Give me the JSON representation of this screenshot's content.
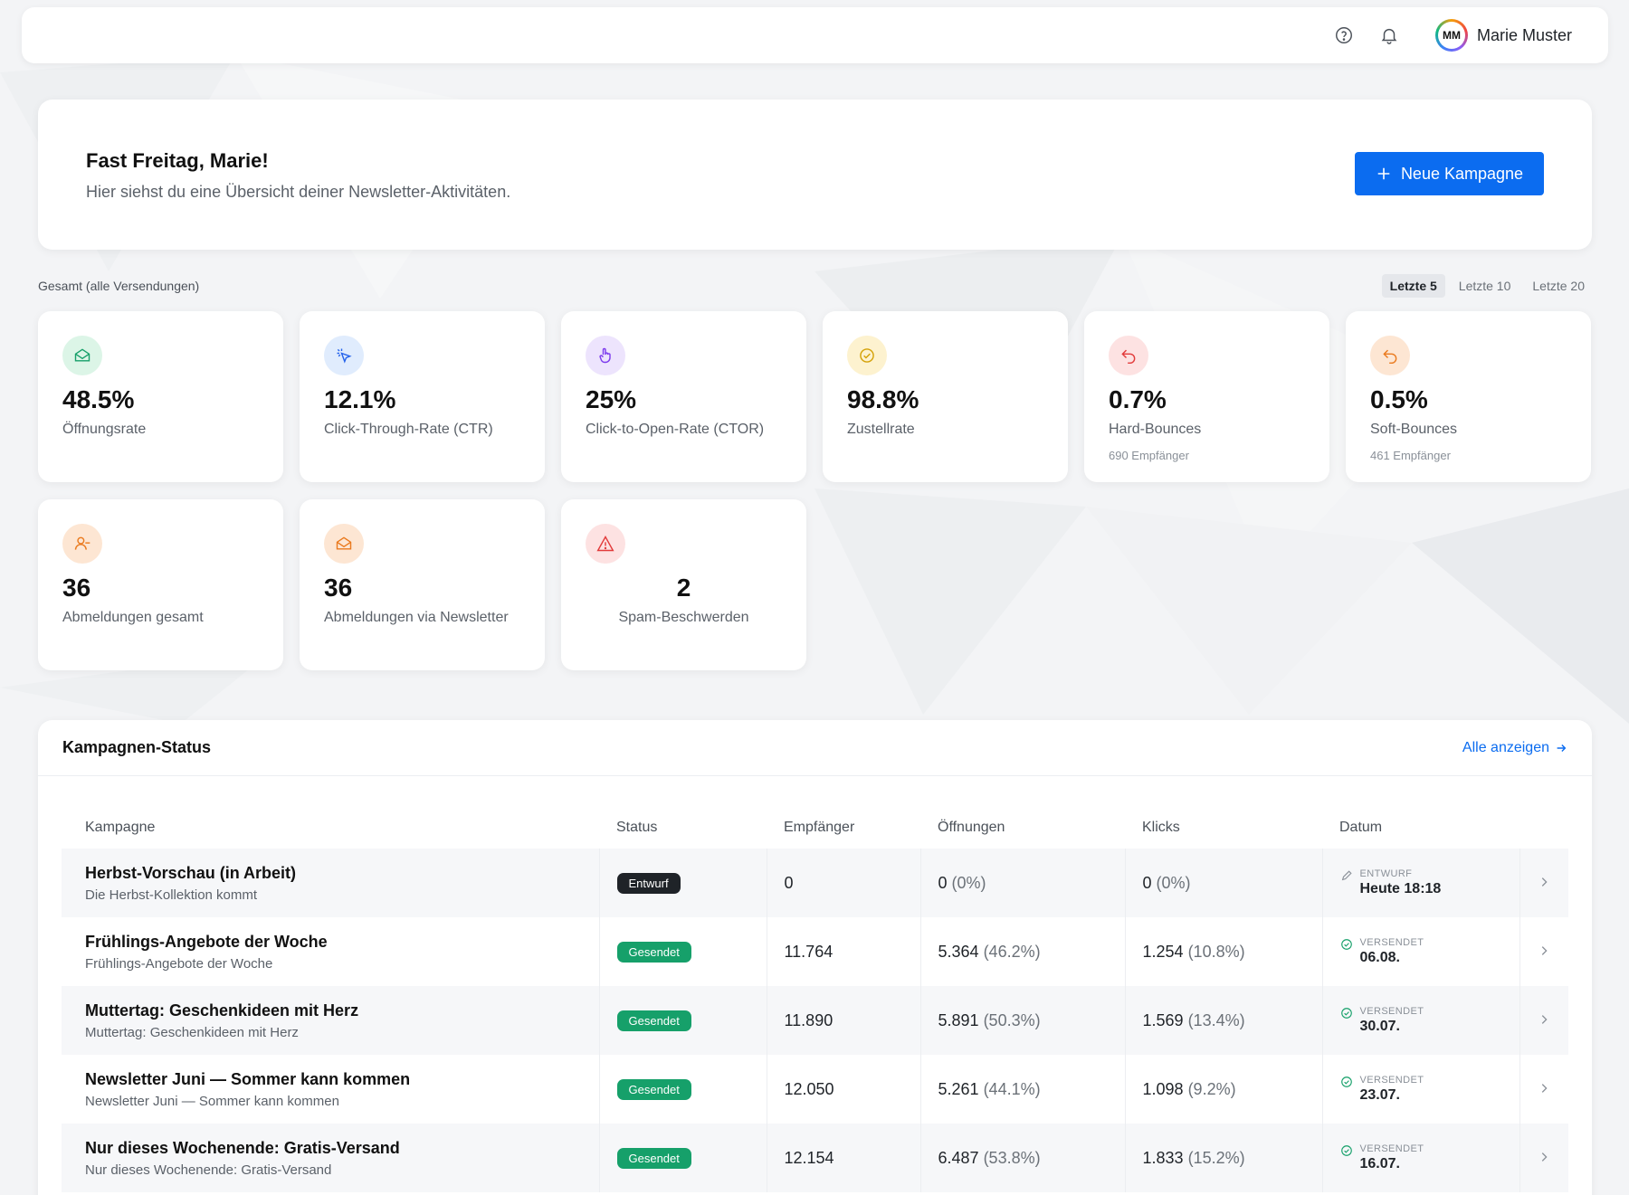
{
  "topbar": {
    "icons": [
      "help-circle-icon",
      "bell-icon"
    ],
    "user": {
      "initials": "MM",
      "name": "Marie Muster"
    }
  },
  "greeting": {
    "title": "Fast Freitag, Marie!",
    "subtitle": "Hier siehst du eine Übersicht deiner Newsletter-Aktivitäten.",
    "button_label": "Neue Kampagne"
  },
  "stats_section": {
    "label": "Gesamt (alle Versendungen)",
    "filters": [
      {
        "label": "Letzte 5",
        "active": true
      },
      {
        "label": "Letzte 10",
        "active": false
      },
      {
        "label": "Letzte 20",
        "active": false
      }
    ]
  },
  "stats": [
    {
      "value": "48.5%",
      "label": "Öffnungsrate",
      "sub": "",
      "icon": "envelope-open-icon",
      "color": "#16a06a",
      "bg": "#dcf5e7"
    },
    {
      "value": "12.1%",
      "label": "Click-Through-Rate (CTR)",
      "sub": "",
      "icon": "cursor-click-icon",
      "color": "#2563eb",
      "bg": "#e0ecfd"
    },
    {
      "value": "25%",
      "label": "Click-to-Open-Rate (CTOR)",
      "sub": "",
      "icon": "hand-pointer-icon",
      "color": "#7c3aed",
      "bg": "#ede4fd"
    },
    {
      "value": "98.8%",
      "label": "Zustellrate",
      "sub": "",
      "icon": "check-circle-icon",
      "color": "#d4a106",
      "bg": "#fdf2cf"
    },
    {
      "value": "0.7%",
      "label": "Hard-Bounces",
      "sub": "690 Empfänger",
      "icon": "return-arrow-icon",
      "color": "#e23b3b",
      "bg": "#fde2e2"
    },
    {
      "value": "0.5%",
      "label": "Soft-Bounces",
      "sub": "461 Empfänger",
      "icon": "return-arrow-icon",
      "color": "#ea7a1e",
      "bg": "#fde6d3"
    },
    {
      "value": "36",
      "label": "Abmeldungen gesamt",
      "sub": "",
      "icon": "user-minus-icon",
      "color": "#ea7a1e",
      "bg": "#fde6d3"
    },
    {
      "value": "36",
      "label": "Abmeldungen via Newsletter",
      "sub": "",
      "icon": "envelope-open-icon",
      "color": "#ea7a1e",
      "bg": "#fde6d3"
    },
    {
      "value": "2",
      "label": "Spam-Beschwerden",
      "sub": "",
      "icon": "warning-triangle-icon",
      "color": "#e23b3b",
      "bg": "#fde2e2"
    }
  ],
  "campaigns": {
    "title": "Kampagnen-Status",
    "all_link": "Alle anzeigen",
    "columns": [
      "Kampagne",
      "Status",
      "Empfänger",
      "Öffnungen",
      "Klicks",
      "Datum"
    ],
    "rows": [
      {
        "name": "Herbst-Vorschau (in Arbeit)",
        "sub": "Die Herbst-Kollektion kommt",
        "status": "Entwurf",
        "status_type": "draft",
        "recipients": "0",
        "opens": "0",
        "opens_pct": "(0%)",
        "clicks": "0",
        "clicks_pct": "(0%)",
        "date_state": "ENTWURF",
        "date": "Heute 18:18",
        "date_icon": "pencil-icon"
      },
      {
        "name": "Frühlings-Angebote der Woche",
        "sub": "Frühlings-Angebote der Woche",
        "status": "Gesendet",
        "status_type": "sent",
        "recipients": "11.764",
        "opens": "5.364",
        "opens_pct": "(46.2%)",
        "clicks": "1.254",
        "clicks_pct": "(10.8%)",
        "date_state": "VERSENDET",
        "date": "06.08.",
        "date_icon": "check-circle-icon"
      },
      {
        "name": "Muttertag: Geschenkideen mit Herz",
        "sub": "Muttertag: Geschenkideen mit Herz",
        "status": "Gesendet",
        "status_type": "sent",
        "recipients": "11.890",
        "opens": "5.891",
        "opens_pct": "(50.3%)",
        "clicks": "1.569",
        "clicks_pct": "(13.4%)",
        "date_state": "VERSENDET",
        "date": "30.07.",
        "date_icon": "check-circle-icon"
      },
      {
        "name": "Newsletter Juni — Sommer kann kommen",
        "sub": "Newsletter Juni — Sommer kann kommen",
        "status": "Gesendet",
        "status_type": "sent",
        "recipients": "12.050",
        "opens": "5.261",
        "opens_pct": "(44.1%)",
        "clicks": "1.098",
        "clicks_pct": "(9.2%)",
        "date_state": "VERSENDET",
        "date": "23.07.",
        "date_icon": "check-circle-icon"
      },
      {
        "name": "Nur dieses Wochenende: Gratis-Versand",
        "sub": "Nur dieses Wochenende: Gratis-Versand",
        "status": "Gesendet",
        "status_type": "sent",
        "recipients": "12.154",
        "opens": "6.487",
        "opens_pct": "(53.8%)",
        "clicks": "1.833",
        "clicks_pct": "(15.2%)",
        "date_state": "VERSENDET",
        "date": "16.07.",
        "date_icon": "check-circle-icon"
      }
    ]
  },
  "colors": {
    "accent": "#0b6cf0",
    "sent": "#16a06a",
    "draft": "#1f2328"
  }
}
